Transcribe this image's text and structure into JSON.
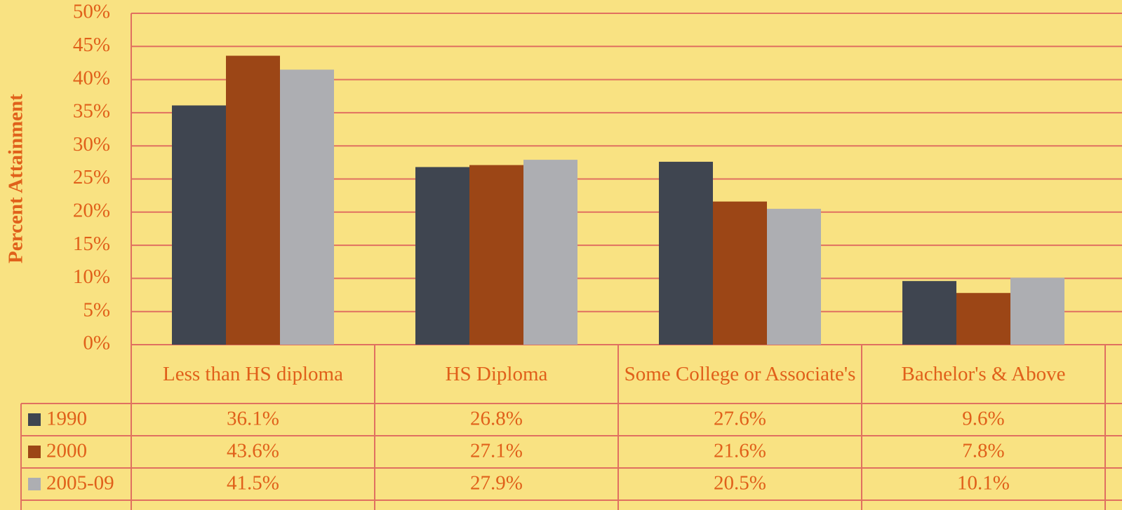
{
  "chart_data": {
    "type": "bar",
    "ylabel": "Percent Attainment",
    "categories": [
      "Less than HS diploma",
      "HS Diploma",
      "Some College or Associate's",
      "Bachelor's & Above"
    ],
    "series": [
      {
        "name": "1990",
        "color": "#3f4550",
        "values": [
          36.1,
          26.8,
          27.6,
          9.6
        ],
        "value_labels": [
          "36.1%",
          "26.8%",
          "27.6%",
          "9.6%"
        ]
      },
      {
        "name": "2000",
        "color": "#9c4616",
        "values": [
          43.6,
          27.1,
          21.6,
          7.8
        ],
        "value_labels": [
          "43.6%",
          "27.1%",
          "21.6%",
          "7.8%"
        ]
      },
      {
        "name": "2005-09",
        "color": "#adaeb2",
        "values": [
          41.5,
          27.9,
          20.5,
          10.1
        ],
        "value_labels": [
          "41.5%",
          "27.9%",
          "20.5%",
          "10.1%"
        ]
      }
    ],
    "ylim": [
      0,
      50
    ],
    "yticks": [
      {
        "value": 0,
        "label": "0%"
      },
      {
        "value": 5,
        "label": "5%"
      },
      {
        "value": 10,
        "label": "10%"
      },
      {
        "value": 15,
        "label": "15%"
      },
      {
        "value": 20,
        "label": "20%"
      },
      {
        "value": 25,
        "label": "25%"
      },
      {
        "value": 30,
        "label": "30%"
      },
      {
        "value": 35,
        "label": "35%"
      },
      {
        "value": 40,
        "label": "40%"
      },
      {
        "value": 45,
        "label": "45%"
      },
      {
        "value": 50,
        "label": "50%"
      }
    ],
    "grid": true
  }
}
